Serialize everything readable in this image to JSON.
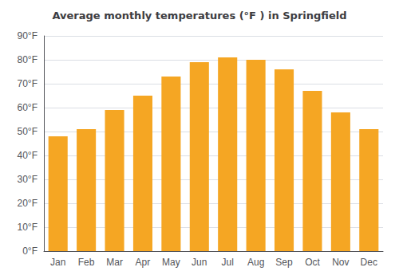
{
  "chart_data": {
    "type": "bar",
    "title": "Average monthly temperatures (°F ) in Springfield",
    "categories": [
      "Jan",
      "Feb",
      "Mar",
      "Apr",
      "May",
      "Jun",
      "Jul",
      "Aug",
      "Sep",
      "Oct",
      "Nov",
      "Dec"
    ],
    "values": [
      48,
      51,
      59,
      65,
      73,
      79,
      81,
      80,
      76,
      67,
      58,
      51
    ],
    "color": "#F5A623",
    "ylim": [
      0,
      90
    ],
    "yticks": [
      {
        "value": 0,
        "label": "0°F"
      },
      {
        "value": 10,
        "label": "10°F"
      },
      {
        "value": 20,
        "label": "20°F"
      },
      {
        "value": 30,
        "label": "30°F"
      },
      {
        "value": 40,
        "label": "40°F"
      },
      {
        "value": 50,
        "label": "50°F"
      },
      {
        "value": 60,
        "label": "60°F"
      },
      {
        "value": 70,
        "label": "70°F"
      },
      {
        "value": 80,
        "label": "80°F"
      },
      {
        "value": 90,
        "label": "90°F"
      }
    ],
    "grid": true
  }
}
